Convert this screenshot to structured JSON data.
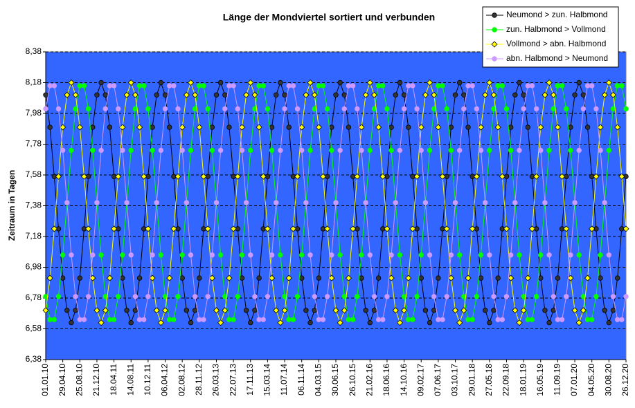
{
  "chart_data": {
    "type": "line",
    "title": "Länge der Mondviertel sortiert und verbunden",
    "y_label": "Zeitraum in Tagen",
    "ylim": [
      6.38,
      8.38
    ],
    "yticks": [
      {
        "value": 6.38,
        "label": "6,38"
      },
      {
        "value": 6.58,
        "label": "6,58"
      },
      {
        "value": 6.78,
        "label": "6,78"
      },
      {
        "value": 6.98,
        "label": "6,98"
      },
      {
        "value": 7.18,
        "label": "7,18"
      },
      {
        "value": 7.38,
        "label": "7,38"
      },
      {
        "value": 7.58,
        "label": "7,58"
      },
      {
        "value": 7.78,
        "label": "7,78"
      },
      {
        "value": 7.98,
        "label": "7,98"
      },
      {
        "value": 8.18,
        "label": "8,18"
      },
      {
        "value": 8.38,
        "label": "8,38"
      }
    ],
    "grid": true,
    "legend": "top-right",
    "background": "#3366ff",
    "categories": [
      "01.01.10",
      null,
      null,
      null,
      "29.04.10",
      null,
      null,
      null,
      "25.08.10",
      null,
      null,
      null,
      "21.12.10",
      null,
      null,
      null,
      "18.04.11",
      null,
      null,
      null,
      "14.08.11",
      null,
      null,
      null,
      "10.12.11",
      null,
      null,
      null,
      "06.04.12",
      null,
      null,
      null,
      "02.08.12",
      null,
      null,
      null,
      "28.11.12",
      null,
      null,
      null,
      "26.03.13",
      null,
      null,
      null,
      "22.07.13",
      null,
      null,
      null,
      "17.11.13",
      null,
      null,
      null,
      "15.03.14",
      null,
      null,
      null,
      "11.07.14",
      null,
      null,
      null,
      "06.11.14",
      null,
      null,
      null,
      "04.03.15",
      null,
      null,
      null,
      "30.06.15",
      null,
      null,
      null,
      "26.10.15",
      null,
      null,
      null,
      "21.02.16",
      null,
      null,
      null,
      "18.06.16",
      null,
      null,
      null,
      "14.10.16",
      null,
      null,
      null,
      "09.02.17",
      null,
      null,
      null,
      "07.06.17",
      null,
      null,
      null,
      "03.10.17",
      null,
      null,
      null,
      "29.01.18",
      null,
      null,
      null,
      "27.05.18",
      null,
      null,
      null,
      "22.09.18",
      null,
      null,
      null,
      "18.01.19",
      null,
      null,
      null,
      "16.05.19",
      null,
      null,
      null,
      "11.09.19",
      null,
      null,
      null,
      "07.01.20",
      null,
      null,
      null,
      "04.05.20",
      null,
      null,
      null,
      "30.08.20",
      null,
      null,
      null,
      "26.12.20"
    ],
    "series": [
      {
        "name": "Neumond > zun. Halbmond",
        "color": "#000000",
        "marker_fill": "#333333",
        "marker": "circle",
        "values": [
          8.1,
          7.89,
          7.57,
          7.23,
          6.91,
          6.7,
          6.62,
          6.7,
          6.91,
          7.23,
          7.57,
          7.89,
          8.1,
          8.18,
          8.1,
          7.89,
          7.57,
          7.23,
          6.91,
          6.7,
          6.62,
          6.7,
          6.91,
          7.23,
          7.57,
          7.89,
          8.1,
          8.18,
          8.1,
          7.89,
          7.57,
          7.23,
          6.91,
          6.7,
          6.62,
          6.7,
          6.91,
          7.23,
          7.57,
          7.89,
          8.1,
          8.18,
          8.1,
          7.89,
          7.57,
          7.23,
          6.91,
          6.7,
          6.62,
          6.7,
          6.91,
          7.23,
          7.57,
          7.89,
          8.1,
          8.18,
          8.1,
          7.89,
          7.57,
          7.23,
          6.91,
          6.7,
          6.62,
          6.7,
          6.91,
          7.23,
          7.57,
          7.89,
          8.1,
          8.18,
          8.1,
          7.89,
          7.57,
          7.23,
          6.91,
          6.7,
          6.62,
          6.7,
          6.91,
          7.23,
          7.57,
          7.89,
          8.1,
          8.18,
          8.1,
          7.89,
          7.57,
          7.23,
          6.91,
          6.7,
          6.62,
          6.7,
          6.91,
          7.23,
          7.57,
          7.89,
          8.1,
          8.18,
          8.1,
          7.89,
          7.57,
          7.23,
          6.91,
          6.7,
          6.62,
          6.7,
          6.91,
          7.23,
          7.57,
          7.89,
          8.1,
          8.18,
          8.1,
          7.89,
          7.57,
          7.23,
          6.91,
          6.7,
          6.62,
          6.7,
          6.91,
          7.23,
          7.57,
          7.89,
          8.1,
          8.18,
          8.1,
          7.89,
          7.57,
          7.23,
          6.91,
          6.7,
          6.62,
          6.7,
          6.91,
          7.23,
          7.57
        ]
      },
      {
        "name": "zun. Halbmond > Vollmond",
        "color": "#00ff00",
        "marker_fill": "#00ff00",
        "marker": "circle",
        "values": [
          6.79,
          6.64,
          6.64,
          6.79,
          7.06,
          7.4,
          7.74,
          8.01,
          8.16,
          8.16,
          8.01,
          7.74,
          7.4,
          7.06,
          6.79,
          6.64,
          6.64,
          6.79,
          7.06,
          7.4,
          7.74,
          8.01,
          8.16,
          8.16,
          8.01,
          7.74,
          7.4,
          7.06,
          6.79,
          6.64,
          6.64,
          6.79,
          7.06,
          7.4,
          7.74,
          8.01,
          8.16,
          8.16,
          8.01,
          7.74,
          7.4,
          7.06,
          6.79,
          6.64,
          6.64,
          6.79,
          7.06,
          7.4,
          7.74,
          8.01,
          8.16,
          8.16,
          8.01,
          7.74,
          7.4,
          7.06,
          6.79,
          6.64,
          6.64,
          6.79,
          7.06,
          7.4,
          7.74,
          8.01,
          8.16,
          8.16,
          8.01,
          7.74,
          7.4,
          7.06,
          6.79,
          6.64,
          6.64,
          6.79,
          7.06,
          7.4,
          7.74,
          8.01,
          8.16,
          8.16,
          8.01,
          7.74,
          7.4,
          7.06,
          6.79,
          6.64,
          6.64,
          6.79,
          7.06,
          7.4,
          7.74,
          8.01,
          8.16,
          8.16,
          8.01,
          7.74,
          7.4,
          7.06,
          6.79,
          6.64,
          6.64,
          6.79,
          7.06,
          7.4,
          7.74,
          8.01,
          8.16,
          8.16,
          8.01,
          7.74,
          7.4,
          7.06,
          6.79,
          6.64,
          6.64,
          6.79,
          7.06,
          7.4,
          7.74,
          8.01,
          8.16,
          8.16,
          8.01,
          7.74,
          7.4,
          7.06,
          6.79,
          6.64,
          6.64,
          6.79,
          7.06,
          7.4,
          7.74,
          8.01,
          8.16,
          8.16,
          8.01
        ]
      },
      {
        "name": "Vollmond > abn. Halbmond",
        "color": "#ffff00",
        "marker_fill": "#ffff00",
        "marker": "diamond",
        "values": [
          6.7,
          6.91,
          7.23,
          7.57,
          7.89,
          8.1,
          8.18,
          8.1,
          7.89,
          7.57,
          7.23,
          6.91,
          6.7,
          6.62,
          6.7,
          6.91,
          7.23,
          7.57,
          7.89,
          8.1,
          8.18,
          8.1,
          7.89,
          7.57,
          7.23,
          6.91,
          6.7,
          6.62,
          6.7,
          6.91,
          7.23,
          7.57,
          7.89,
          8.1,
          8.18,
          8.1,
          7.89,
          7.57,
          7.23,
          6.91,
          6.7,
          6.62,
          6.7,
          6.91,
          7.23,
          7.57,
          7.89,
          8.1,
          8.18,
          8.1,
          7.89,
          7.57,
          7.23,
          6.91,
          6.7,
          6.62,
          6.7,
          6.91,
          7.23,
          7.57,
          7.89,
          8.1,
          8.18,
          8.1,
          7.89,
          7.57,
          7.23,
          6.91,
          6.7,
          6.62,
          6.7,
          6.91,
          7.23,
          7.57,
          7.89,
          8.1,
          8.18,
          8.1,
          7.89,
          7.57,
          7.23,
          6.91,
          6.7,
          6.62,
          6.7,
          6.91,
          7.23,
          7.57,
          7.89,
          8.1,
          8.18,
          8.1,
          7.89,
          7.57,
          7.23,
          6.91,
          6.7,
          6.62,
          6.7,
          6.91,
          7.23,
          7.57,
          7.89,
          8.1,
          8.18,
          8.1,
          7.89,
          7.57,
          7.23,
          6.91,
          6.7,
          6.62,
          6.7,
          6.91,
          7.23,
          7.57,
          7.89,
          8.1,
          8.18,
          8.1,
          7.89,
          7.57,
          7.23,
          6.91,
          6.7,
          6.62,
          6.7,
          6.91,
          7.23,
          7.57,
          7.89,
          8.1,
          8.18,
          8.1,
          7.89,
          7.57,
          7.23
        ]
      },
      {
        "name": "abn. Halbmond > Neumond",
        "color": "#cc99ff",
        "marker_fill": "#cc99ff",
        "marker": "circle",
        "values": [
          8.01,
          8.16,
          8.16,
          8.01,
          7.74,
          7.4,
          7.06,
          6.79,
          6.64,
          6.64,
          6.79,
          7.06,
          7.4,
          7.74,
          8.01,
          8.16,
          8.16,
          8.01,
          7.74,
          7.4,
          7.06,
          6.79,
          6.64,
          6.64,
          6.79,
          7.06,
          7.4,
          7.74,
          8.01,
          8.16,
          8.16,
          8.01,
          7.74,
          7.4,
          7.06,
          6.79,
          6.64,
          6.64,
          6.79,
          7.06,
          7.4,
          7.74,
          8.01,
          8.16,
          8.16,
          8.01,
          7.74,
          7.4,
          7.06,
          6.79,
          6.64,
          6.64,
          6.79,
          7.06,
          7.4,
          7.74,
          8.01,
          8.16,
          8.16,
          8.01,
          7.74,
          7.4,
          7.06,
          6.79,
          6.64,
          6.64,
          6.79,
          7.06,
          7.4,
          7.74,
          8.01,
          8.16,
          8.16,
          8.01,
          7.74,
          7.4,
          7.06,
          6.79,
          6.64,
          6.64,
          6.79,
          7.06,
          7.4,
          7.74,
          8.01,
          8.16,
          8.16,
          8.01,
          7.74,
          7.4,
          7.06,
          6.79,
          6.64,
          6.64,
          6.79,
          7.06,
          7.4,
          7.74,
          8.01,
          8.16,
          8.16,
          8.01,
          7.74,
          7.4,
          7.06,
          6.79,
          6.64,
          6.64,
          6.79,
          7.06,
          7.4,
          7.74,
          8.01,
          8.16,
          8.16,
          8.01,
          7.74,
          7.4,
          7.06,
          6.79,
          6.64,
          6.64,
          6.79,
          7.06,
          7.4,
          7.74,
          8.01,
          8.16,
          8.16,
          8.01,
          7.74,
          7.4,
          7.06,
          6.79,
          6.64,
          6.64,
          6.79
        ]
      }
    ]
  }
}
